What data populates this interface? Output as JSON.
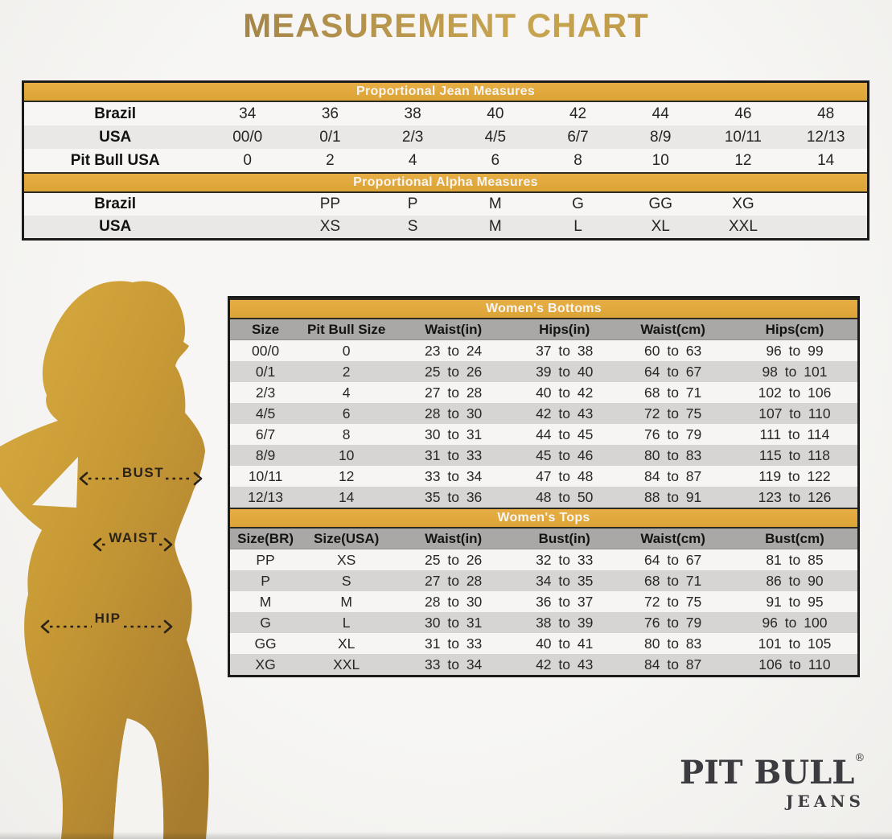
{
  "title": "MEASUREMENT CHART",
  "jean_table": {
    "header": "Proportional Jean Measures",
    "rows": [
      {
        "label": "Brazil",
        "values": [
          "34",
          "36",
          "38",
          "40",
          "42",
          "44",
          "46",
          "48"
        ]
      },
      {
        "label": "USA",
        "values": [
          "00/0",
          "0/1",
          "2/3",
          "4/5",
          "6/7",
          "8/9",
          "10/11",
          "12/13"
        ]
      },
      {
        "label": "Pit Bull USA",
        "values": [
          "0",
          "2",
          "4",
          "6",
          "8",
          "10",
          "12",
          "14"
        ]
      }
    ]
  },
  "alpha_table": {
    "header": "Proportional Alpha Measures",
    "rows": [
      {
        "label": "Brazil",
        "values": [
          "",
          "PP",
          "P",
          "M",
          "G",
          "GG",
          "XG",
          ""
        ]
      },
      {
        "label": "USA",
        "values": [
          "",
          "XS",
          "S",
          "M",
          "L",
          "XL",
          "XXL",
          ""
        ]
      }
    ]
  },
  "bottoms_table": {
    "header": "Women's Bottoms",
    "columns": [
      "Size",
      "Pit Bull Size",
      "Waist(in)",
      "Hips(in)",
      "Waist(cm)",
      "Hips(cm)"
    ],
    "rows": [
      [
        "00/0",
        "0",
        "23 to 24",
        "37 to 38",
        "60 to 63",
        "96 to 99"
      ],
      [
        "0/1",
        "2",
        "25 to 26",
        "39 to 40",
        "64 to 67",
        "98 to 101"
      ],
      [
        "2/3",
        "4",
        "27 to 28",
        "40 to 42",
        "68 to 71",
        "102 to 106"
      ],
      [
        "4/5",
        "6",
        "28 to 30",
        "42 to 43",
        "72 to 75",
        "107 to 110"
      ],
      [
        "6/7",
        "8",
        "30 to 31",
        "44 to 45",
        "76 to 79",
        "111 to 114"
      ],
      [
        "8/9",
        "10",
        "31 to 33",
        "45 to 46",
        "80 to 83",
        "115 to 118"
      ],
      [
        "10/11",
        "12",
        "33 to 34",
        "47 to 48",
        "84 to 87",
        "119 to 122"
      ],
      [
        "12/13",
        "14",
        "35 to 36",
        "48 to 50",
        "88 to 91",
        "123 to 126"
      ]
    ]
  },
  "tops_table": {
    "header": "Women's Tops",
    "columns": [
      "Size(BR)",
      "Size(USA)",
      "Waist(in)",
      "Bust(in)",
      "Waist(cm)",
      "Bust(cm)"
    ],
    "rows": [
      [
        "PP",
        "XS",
        "25 to 26",
        "32 to 33",
        "64 to 67",
        "81 to 85"
      ],
      [
        "P",
        "S",
        "27 to 28",
        "34 to 35",
        "68 to 71",
        "86 to 90"
      ],
      [
        "M",
        "M",
        "28 to 30",
        "36 to 37",
        "72 to 75",
        "91 to 95"
      ],
      [
        "G",
        "L",
        "30 to 31",
        "38 to 39",
        "76 to 79",
        "96 to 100"
      ],
      [
        "GG",
        "XL",
        "31 to 33",
        "40 to 41",
        "80 to 83",
        "101 to 105"
      ],
      [
        "XG",
        "XXL",
        "33 to 34",
        "42 to 43",
        "84 to 87",
        "106 to 110"
      ]
    ]
  },
  "figure": {
    "bust": "BUST",
    "waist": "WAIST",
    "hip": "HIP"
  },
  "logo": {
    "brand": "PIT BULL",
    "registered": "®",
    "sub": "JEANS"
  },
  "colors": {
    "gold_bar": "#DFA63C",
    "title_gradient_start": "#7F6136",
    "title_gradient_end": "#C8A550",
    "silhouette_light": "#D9AC41",
    "silhouette_dark": "#A87C2F",
    "header_row_gray": "#A9A8A6",
    "stripe_gray": "#D6D5D3",
    "logo_color": "#3C3B3F"
  }
}
